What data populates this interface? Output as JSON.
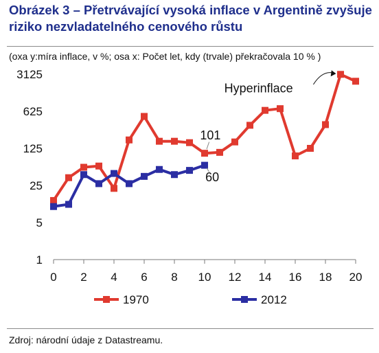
{
  "title": "Obrázek 3 – Přetrvávající vysoká inflace v Argentině zvyšuje riziko nezvladatelného cenového růstu",
  "subtitle": "(oxa y:míra inflace, v %; osa x: Počet let, kdy (trvale) překračovala 10 % )",
  "source": "Zdroj: národní údaje z Datastreamu.",
  "colors": {
    "series_1970": "#e03a2f",
    "series_2012": "#2b2ea3",
    "title": "#1f2f8c"
  },
  "chart_data": {
    "type": "line",
    "y_scale": "log5",
    "ylim": [
      1,
      3125
    ],
    "xlim": [
      0,
      20
    ],
    "y_ticks": [
      1,
      5,
      25,
      125,
      625,
      3125
    ],
    "y_tick_labels": [
      "1",
      "5",
      "25",
      "125",
      "625",
      "3125"
    ],
    "x_ticks": [
      0,
      2,
      4,
      6,
      8,
      10,
      12,
      14,
      16,
      18,
      20
    ],
    "x_tick_labels": [
      "0",
      "2",
      "4",
      "6",
      "8",
      "10",
      "12",
      "14",
      "16",
      "18",
      "20"
    ],
    "grid": false,
    "legend_position": "bottom",
    "series": [
      {
        "name": "1970",
        "x": [
          0,
          1,
          2,
          3,
          4,
          5,
          6,
          7,
          8,
          9,
          10,
          11,
          12,
          13,
          14,
          15,
          16,
          17,
          18,
          19,
          20
        ],
        "y": [
          13,
          35,
          55,
          58,
          22,
          180,
          500,
          170,
          170,
          160,
          101,
          105,
          165,
          340,
          650,
          700,
          90,
          125,
          350,
          3100,
          2300
        ]
      },
      {
        "name": "2012",
        "x": [
          0,
          1,
          2,
          3,
          4,
          5,
          6,
          7,
          8,
          9,
          10
        ],
        "y": [
          10,
          11,
          40,
          27,
          42,
          27,
          37,
          50,
          40,
          48,
          60
        ]
      }
    ],
    "annotations": [
      {
        "text": "Hyperinflace",
        "x": 14.5,
        "y": 1700
      },
      {
        "text": "101",
        "x": 10,
        "y": 101
      },
      {
        "text": "60",
        "x": 10,
        "y": 60
      }
    ]
  }
}
